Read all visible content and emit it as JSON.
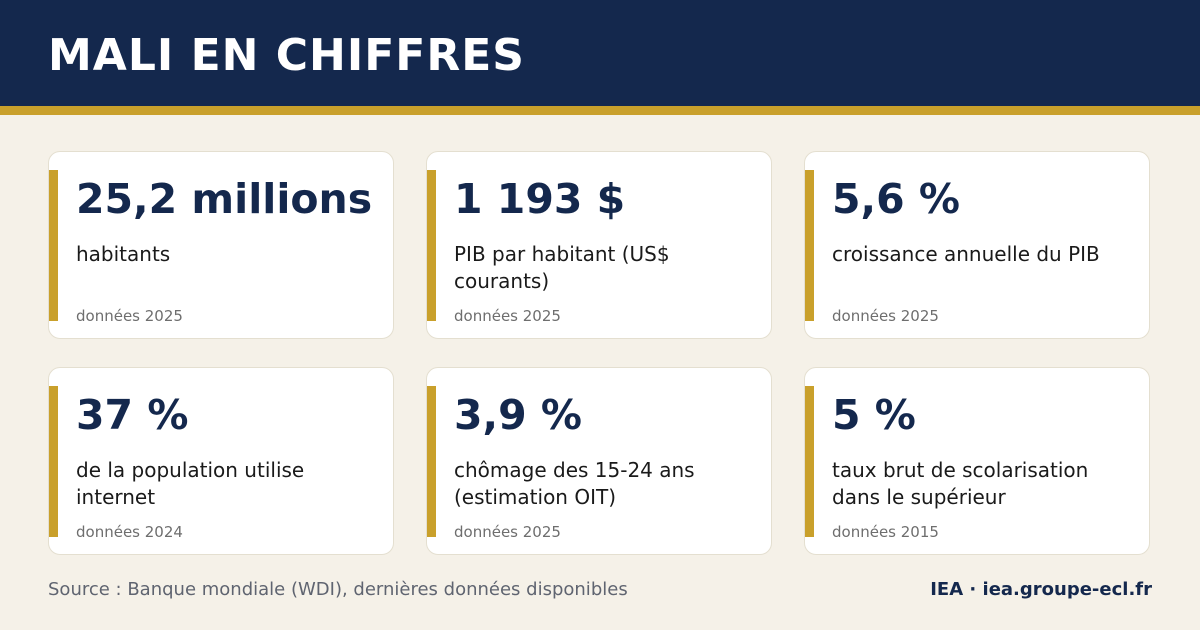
{
  "header": {
    "title": "MALI EN CHIFFRES"
  },
  "colors": {
    "navy": "#14284d",
    "gold": "#c9a02b",
    "background": "#f5f1e8"
  },
  "cards": [
    {
      "value": "25,2 millions",
      "label": "habitants",
      "note": "données 2025"
    },
    {
      "value": "1 193 $",
      "label": "PIB par habitant (US$ courants)",
      "note": "données 2025"
    },
    {
      "value": "5,6 %",
      "label": "croissance annuelle du PIB",
      "note": "données 2025"
    },
    {
      "value": "37 %",
      "label": "de la population utilise internet",
      "note": "données 2024"
    },
    {
      "value": "3,9 %",
      "label": "chômage des 15-24 ans (estimation OIT)",
      "note": "données 2025"
    },
    {
      "value": "5 %",
      "label": "taux brut de scolarisation dans le supérieur",
      "note": "données 2015"
    }
  ],
  "footer": {
    "source": "Source : Banque mondiale (WDI), dernières données disponibles",
    "brand": "IEA · iea.groupe-ecl.fr"
  }
}
